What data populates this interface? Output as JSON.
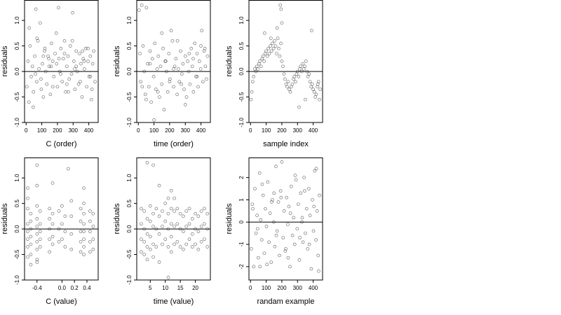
{
  "chart_data": [
    {
      "type": "scatter",
      "xlabel": "C (order)",
      "ylabel": "residuals",
      "xlim": [
        -10,
        460
      ],
      "ylim": [
        -1.0,
        1.4
      ],
      "xticks": [
        0,
        100,
        200,
        300,
        400
      ],
      "xtick_labels": [
        "0",
        "100",
        "200",
        "300",
        "400"
      ],
      "yticks": [
        -1.0,
        -0.5,
        0.0,
        0.5,
        1.0
      ],
      "ytick_labels": [
        "-1.0",
        "-0.5",
        "0.0",
        "0.5",
        "1.0"
      ],
      "hline": 0,
      "x": [
        5,
        12,
        18,
        25,
        33,
        40,
        47,
        55,
        62,
        68,
        75,
        82,
        90,
        97,
        104,
        110,
        118,
        125,
        132,
        140,
        147,
        155,
        162,
        170,
        177,
        185,
        192,
        200,
        207,
        215,
        222,
        230,
        238,
        245,
        252,
        260,
        267,
        275,
        282,
        290,
        297,
        305,
        312,
        320,
        327,
        335,
        342,
        350,
        357,
        365,
        372,
        380,
        387,
        395,
        402,
        410,
        417,
        425,
        432,
        440,
        20,
        45,
        70,
        95,
        120,
        145,
        170,
        195,
        220,
        245,
        270,
        295,
        320,
        345,
        370,
        395,
        420,
        60,
        110,
        160,
        210,
        260,
        310,
        360,
        410
      ],
      "y": [
        -0.3,
        0.2,
        -0.6,
        0.5,
        -0.1,
        0.1,
        -0.4,
        0.3,
        1.22,
        -0.2,
        0.6,
        0.05,
        0.95,
        -0.35,
        0.15,
        -0.5,
        0.4,
        0.0,
        -0.25,
        0.3,
        0.1,
        -0.45,
        0.55,
        0.2,
        -0.1,
        0.35,
        0.75,
        -0.3,
        1.25,
        0.0,
        0.45,
        -0.2,
        0.25,
        0.6,
        -0.4,
        0.1,
        0.3,
        -0.15,
        0.5,
        -0.05,
        1.15,
        0.2,
        -0.35,
        0.4,
        0.0,
        -0.25,
        0.35,
        0.15,
        -0.5,
        0.25,
        0.05,
        0.45,
        -0.3,
        0.2,
        -0.1,
        0.3,
        -0.55,
        0.15,
        0.4,
        -0.2,
        0.85,
        -0.7,
        0.65,
        -0.15,
        0.45,
        0.25,
        -0.3,
        0.15,
        -0.05,
        0.35,
        -0.4,
        0.6,
        0.1,
        -0.2,
        0.2,
        0.45,
        -0.35,
        -0.05,
        0.3,
        0.1,
        0.25,
        -0.25,
        0.05,
        0.4,
        -0.1
      ]
    },
    {
      "type": "scatter",
      "xlabel": "time (order)",
      "ylabel": "residuals",
      "xlim": [
        -10,
        460
      ],
      "ylim": [
        -1.0,
        1.4
      ],
      "xticks": [
        0,
        100,
        200,
        300,
        400
      ],
      "xtick_labels": [
        "0",
        "100",
        "200",
        "300",
        "400"
      ],
      "yticks": [
        -1.0,
        -0.5,
        0.0,
        0.5,
        1.0
      ],
      "ytick_labels": [
        "-1.0",
        "-0.5",
        "0.0",
        "0.5",
        "1.0"
      ],
      "hline": 0,
      "x": [
        5,
        10,
        15,
        22,
        30,
        38,
        45,
        52,
        60,
        67,
        75,
        82,
        90,
        98,
        105,
        112,
        120,
        128,
        135,
        142,
        150,
        158,
        165,
        172,
        180,
        188,
        195,
        202,
        210,
        218,
        225,
        232,
        240,
        248,
        255,
        262,
        270,
        278,
        285,
        292,
        300,
        308,
        315,
        322,
        330,
        338,
        345,
        352,
        360,
        368,
        375,
        382,
        390,
        398,
        405,
        412,
        420,
        428,
        435,
        442,
        50,
        100,
        150,
        200,
        250,
        300,
        350,
        400,
        25,
        75,
        125,
        175,
        225,
        275,
        325,
        375,
        425
      ],
      "y": [
        1.2,
        0.35,
        -0.2,
        1.3,
        0.5,
        0.0,
        -0.45,
        1.25,
        0.15,
        -0.3,
        0.4,
        -0.6,
        0.25,
        -0.1,
        0.55,
        -0.35,
        0.05,
        0.3,
        -0.5,
        0.1,
        -0.25,
        0.45,
        -0.75,
        0.2,
        0.0,
        -0.4,
        0.35,
        -0.15,
        0.8,
        0.6,
        -0.3,
        0.1,
        0.25,
        -0.45,
        0.05,
        -0.2,
        0.4,
        -0.05,
        0.15,
        -0.35,
        0.3,
        -0.5,
        0.2,
        0.0,
        -0.25,
        0.45,
        0.1,
        -0.4,
        0.55,
        -0.1,
        0.35,
        -0.3,
        0.2,
        0.05,
        0.8,
        -0.2,
        0.4,
        0.1,
        -0.15,
        0.3,
        -0.55,
        -0.95,
        0.75,
        -0.2,
        0.6,
        -0.65,
        0.25,
        0.5,
        -0.3,
        0.15,
        -0.4,
        0.2,
        0.05,
        -0.25,
        0.35,
        -0.1,
        0.45
      ]
    },
    {
      "type": "scatter",
      "xlabel": "sample index",
      "ylabel": "residuals",
      "xlim": [
        -10,
        460
      ],
      "ylim": [
        -1.0,
        1.4
      ],
      "xticks": [
        0,
        100,
        200,
        300,
        400
      ],
      "xtick_labels": [
        "0",
        "100",
        "200",
        "300",
        "400"
      ],
      "yticks": [
        -1.0,
        -0.5,
        0.0,
        0.5,
        1.0
      ],
      "ytick_labels": [
        "-1.0",
        "-0.5",
        "0.0",
        "0.5",
        "1.0"
      ],
      "hline": 0,
      "x": [
        3,
        8,
        14,
        20,
        27,
        34,
        40,
        47,
        54,
        60,
        67,
        74,
        80,
        87,
        94,
        100,
        107,
        114,
        120,
        127,
        134,
        140,
        147,
        154,
        160,
        167,
        174,
        180,
        187,
        194,
        200,
        207,
        214,
        220,
        227,
        234,
        240,
        247,
        254,
        260,
        267,
        274,
        280,
        287,
        294,
        300,
        307,
        314,
        320,
        327,
        334,
        340,
        347,
        354,
        360,
        367,
        374,
        380,
        387,
        394,
        400,
        407,
        414,
        420,
        427,
        434,
        440,
        445,
        190,
        195,
        200,
        90,
        130,
        170,
        310,
        350,
        390,
        430
      ],
      "y": [
        -0.55,
        -0.4,
        -0.2,
        -0.1,
        0.05,
        0.0,
        0.1,
        0.05,
        0.15,
        0.2,
        0.1,
        0.25,
        0.3,
        0.2,
        0.35,
        0.4,
        0.3,
        0.45,
        0.35,
        0.5,
        0.4,
        0.55,
        0.45,
        0.6,
        0.5,
        0.35,
        0.65,
        0.45,
        0.3,
        0.55,
        0.2,
        0.1,
        -0.05,
        -0.15,
        -0.25,
        -0.3,
        -0.2,
        -0.35,
        -0.4,
        -0.3,
        -0.25,
        -0.15,
        -0.1,
        -0.2,
        -0.05,
        0.0,
        -0.1,
        0.05,
        0.1,
        0.0,
        0.15,
        0.05,
        0.1,
        0.2,
        0.0,
        -0.1,
        -0.05,
        -0.2,
        -0.3,
        -0.25,
        -0.35,
        -0.4,
        -0.5,
        -0.45,
        -0.3,
        -0.2,
        -0.55,
        -0.35,
        1.3,
        1.22,
        0.95,
        0.75,
        0.65,
        0.85,
        -0.7,
        -0.55,
        0.8,
        -0.25
      ]
    },
    {
      "type": "scatter",
      "xlabel": "C (value)",
      "ylabel": "residuals",
      "xlim": [
        -0.6,
        0.58
      ],
      "ylim": [
        -1.0,
        1.4
      ],
      "xticks": [
        -0.4,
        0.0,
        0.2,
        0.4
      ],
      "xtick_labels": [
        "-0.4",
        "0.0",
        "0.2",
        "0.4"
      ],
      "yticks": [
        -1.0,
        -0.5,
        0.0,
        0.5,
        1.0
      ],
      "ytick_labels": [
        "-1.0",
        "-0.5",
        "0.0",
        "0.5",
        "1.0"
      ],
      "hline": 0,
      "x": [
        -0.55,
        -0.55,
        -0.55,
        -0.55,
        -0.55,
        -0.55,
        -0.55,
        -0.55,
        -0.5,
        -0.5,
        -0.5,
        -0.5,
        -0.5,
        -0.5,
        -0.5,
        -0.4,
        -0.4,
        -0.4,
        -0.4,
        -0.4,
        -0.4,
        -0.4,
        -0.4,
        -0.4,
        -0.35,
        -0.35,
        -0.35,
        -0.35,
        -0.35,
        -0.2,
        -0.2,
        -0.2,
        -0.2,
        -0.2,
        -0.15,
        -0.15,
        -0.15,
        -0.15,
        -0.05,
        -0.05,
        -0.05,
        0.0,
        0.0,
        0.0,
        0.05,
        0.05,
        0.05,
        0.15,
        0.15,
        0.15,
        0.15,
        0.3,
        0.3,
        0.3,
        0.3,
        0.3,
        0.35,
        0.35,
        0.35,
        0.35,
        0.35,
        0.35,
        0.35,
        0.45,
        0.45,
        0.45,
        0.45,
        0.45,
        0.5,
        0.5,
        0.5,
        0.5,
        -0.4,
        -0.15,
        0.1,
        0.35
      ],
      "y": [
        0.8,
        0.4,
        0.1,
        -0.05,
        -0.2,
        -0.35,
        -0.55,
        0.6,
        0.3,
        0.0,
        -0.15,
        -0.3,
        -0.5,
        -0.7,
        0.15,
        1.25,
        0.85,
        0.45,
        0.2,
        0.05,
        -0.1,
        -0.25,
        -0.4,
        -0.6,
        0.35,
        0.1,
        -0.05,
        -0.2,
        -0.35,
        0.4,
        0.2,
        0.0,
        -0.2,
        -0.45,
        0.3,
        0.1,
        -0.15,
        -0.3,
        0.35,
        0.0,
        -0.25,
        0.45,
        0.1,
        -0.2,
        0.25,
        -0.05,
        -0.35,
        0.55,
        0.25,
        -0.1,
        -0.4,
        0.4,
        0.15,
        -0.05,
        -0.25,
        -0.45,
        0.5,
        0.3,
        0.1,
        -0.05,
        -0.2,
        -0.35,
        -0.5,
        0.35,
        0.15,
        -0.05,
        -0.25,
        -0.45,
        0.3,
        0.05,
        -0.2,
        -0.4,
        -0.65,
        0.9,
        1.18,
        0.8
      ]
    },
    {
      "type": "scatter",
      "xlabel": "time (value)",
      "ylabel": "residuals",
      "xlim": [
        0.5,
        25
      ],
      "ylim": [
        -1.0,
        1.4
      ],
      "xticks": [
        5,
        10,
        15,
        20
      ],
      "xtick_labels": [
        "5",
        "10",
        "15",
        "20"
      ],
      "yticks": [
        -1.0,
        -0.5,
        0.0,
        0.5,
        1.0
      ],
      "ytick_labels": [
        "-1.0",
        "-0.5",
        "0.0",
        "0.5",
        "1.0"
      ],
      "hline": 0,
      "x": [
        2,
        2,
        2,
        2,
        3,
        3,
        3,
        3,
        4,
        4,
        4,
        4,
        5,
        5,
        5,
        5,
        6,
        6,
        6,
        6,
        7,
        7,
        7,
        8,
        8,
        8,
        9,
        9,
        9,
        10,
        10,
        10,
        11,
        11,
        11,
        11,
        12,
        12,
        12,
        12,
        12,
        13,
        13,
        13,
        14,
        14,
        14,
        15,
        15,
        15,
        16,
        16,
        16,
        17,
        17,
        17,
        18,
        18,
        18,
        19,
        19,
        19,
        20,
        20,
        20,
        21,
        21,
        21,
        22,
        22,
        22,
        23,
        23,
        23,
        24,
        24,
        24,
        4,
        6,
        8,
        11,
        13
      ],
      "y": [
        0.4,
        0.1,
        -0.2,
        -0.45,
        0.35,
        0.0,
        -0.25,
        -0.5,
        0.2,
        -0.1,
        -0.35,
        -0.6,
        0.45,
        0.15,
        -0.15,
        -0.4,
        0.3,
        0.05,
        -0.3,
        -0.55,
        0.4,
        0.0,
        -0.35,
        0.25,
        -0.1,
        -0.65,
        0.35,
        0.05,
        -0.3,
        0.5,
        0.15,
        -0.2,
        0.6,
        0.3,
        0.0,
        -0.35,
        0.75,
        0.4,
        0.1,
        -0.15,
        -0.45,
        0.35,
        0.05,
        -0.3,
        0.4,
        0.1,
        -0.25,
        0.3,
        0.0,
        -0.35,
        0.25,
        -0.05,
        -0.4,
        0.35,
        0.05,
        -0.3,
        0.4,
        0.1,
        -0.2,
        0.2,
        -0.1,
        -0.35,
        0.3,
        0.0,
        -0.3,
        0.25,
        -0.05,
        -0.4,
        0.35,
        0.05,
        -0.25,
        0.4,
        0.1,
        -0.2,
        0.3,
        0.0,
        -0.35,
        1.3,
        1.25,
        0.85,
        -0.95,
        0.6
      ]
    },
    {
      "type": "scatter",
      "xlabel": "randam example",
      "ylabel": "residuals",
      "xlim": [
        -10,
        460
      ],
      "ylim": [
        -2.6,
        2.9
      ],
      "xticks": [
        0,
        100,
        200,
        300,
        400
      ],
      "xtick_labels": [
        "0",
        "100",
        "200",
        "300",
        "400"
      ],
      "yticks": [
        -2,
        -1,
        0,
        1,
        2
      ],
      "ytick_labels": [
        "-2",
        "-1",
        "0",
        "1",
        "2"
      ],
      "hline": 0,
      "x": [
        5,
        12,
        20,
        28,
        35,
        42,
        50,
        58,
        65,
        72,
        80,
        88,
        95,
        102,
        110,
        118,
        125,
        132,
        140,
        148,
        155,
        162,
        170,
        178,
        185,
        192,
        200,
        208,
        215,
        222,
        230,
        238,
        245,
        252,
        260,
        268,
        275,
        282,
        290,
        298,
        305,
        312,
        320,
        328,
        335,
        342,
        350,
        358,
        365,
        372,
        380,
        388,
        395,
        402,
        410,
        418,
        425,
        432,
        440,
        15,
        45,
        75,
        105,
        135,
        165,
        195,
        225,
        255,
        285,
        315,
        345,
        375,
        405,
        435,
        60,
        150,
        240,
        330,
        420
      ],
      "y": [
        -1.2,
        0.8,
        -2.0,
        1.5,
        -0.5,
        0.3,
        -1.6,
        2.2,
        0.1,
        -0.8,
        1.2,
        -1.4,
        0.6,
        -0.2,
        1.8,
        -0.9,
        0.4,
        -1.8,
        1.0,
        0.0,
        -1.1,
        2.5,
        -0.4,
        0.9,
        -1.5,
        1.4,
        2.7,
        -0.7,
        0.5,
        -1.3,
        1.1,
        -0.1,
        0.7,
        -2.0,
        1.6,
        -0.6,
        0.2,
        -1.0,
        1.9,
        -0.3,
        0.8,
        -1.7,
        1.3,
        0.0,
        -0.9,
        2.0,
        -0.5,
        0.6,
        -1.2,
        1.5,
        0.3,
        -2.1,
        1.0,
        -0.4,
        2.3,
        -0.8,
        0.5,
        -1.5,
        1.2,
        0.6,
        -0.3,
        1.7,
        -1.9,
        0.9,
        -0.6,
        1.1,
        -1.2,
        0.4,
        2.1,
        -0.7,
        1.4,
        -1.0,
        0.7,
        -2.2,
        -2.0,
        1.3,
        -1.6,
        0.2,
        2.4
      ]
    }
  ]
}
